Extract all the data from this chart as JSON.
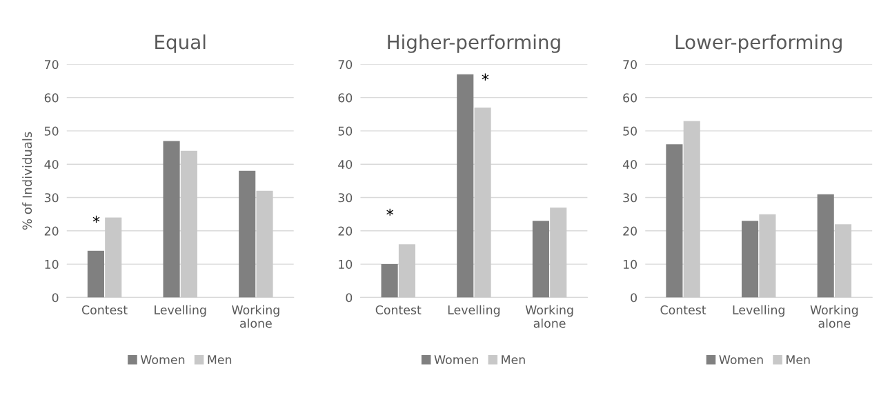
{
  "chart_data": [
    {
      "type": "bar",
      "title": "Equal",
      "ylabel": "% of Individuals",
      "categories": [
        "Contest",
        "Levelling",
        "Working\nalone"
      ],
      "series": [
        {
          "name": "Women",
          "color": "#808080",
          "values": [
            14,
            47,
            38
          ]
        },
        {
          "name": "Men",
          "color": "#c8c8c8",
          "values": [
            24,
            44,
            32
          ]
        }
      ],
      "ylim": [
        0,
        70
      ],
      "yticks": [
        0,
        10,
        20,
        30,
        40,
        50,
        60,
        70
      ],
      "grid": "y",
      "legend": "bottom",
      "annotations": [
        "*"
      ]
    },
    {
      "type": "bar",
      "title": "Higher-performing",
      "categories": [
        "Contest",
        "Levelling",
        "Working\nalone"
      ],
      "series": [
        {
          "name": "Women",
          "color": "#808080",
          "values": [
            10,
            67,
            23
          ]
        },
        {
          "name": "Men",
          "color": "#c8c8c8",
          "values": [
            16,
            57,
            27
          ]
        }
      ],
      "ylim": [
        0,
        70
      ],
      "yticks": [
        0,
        10,
        20,
        30,
        40,
        50,
        60,
        70
      ],
      "grid": "y",
      "legend": "bottom",
      "annotations": [
        "*",
        "*"
      ]
    },
    {
      "type": "bar",
      "title": "Lower-performing",
      "categories": [
        "Contest",
        "Levelling",
        "Working\nalone"
      ],
      "series": [
        {
          "name": "Women",
          "color": "#808080",
          "values": [
            46,
            23,
            31
          ]
        },
        {
          "name": "Men",
          "color": "#c8c8c8",
          "values": [
            53,
            25,
            22
          ]
        }
      ],
      "ylim": [
        0,
        70
      ],
      "yticks": [
        0,
        10,
        20,
        30,
        40,
        50,
        60,
        70
      ],
      "grid": "y",
      "legend": "bottom"
    }
  ]
}
